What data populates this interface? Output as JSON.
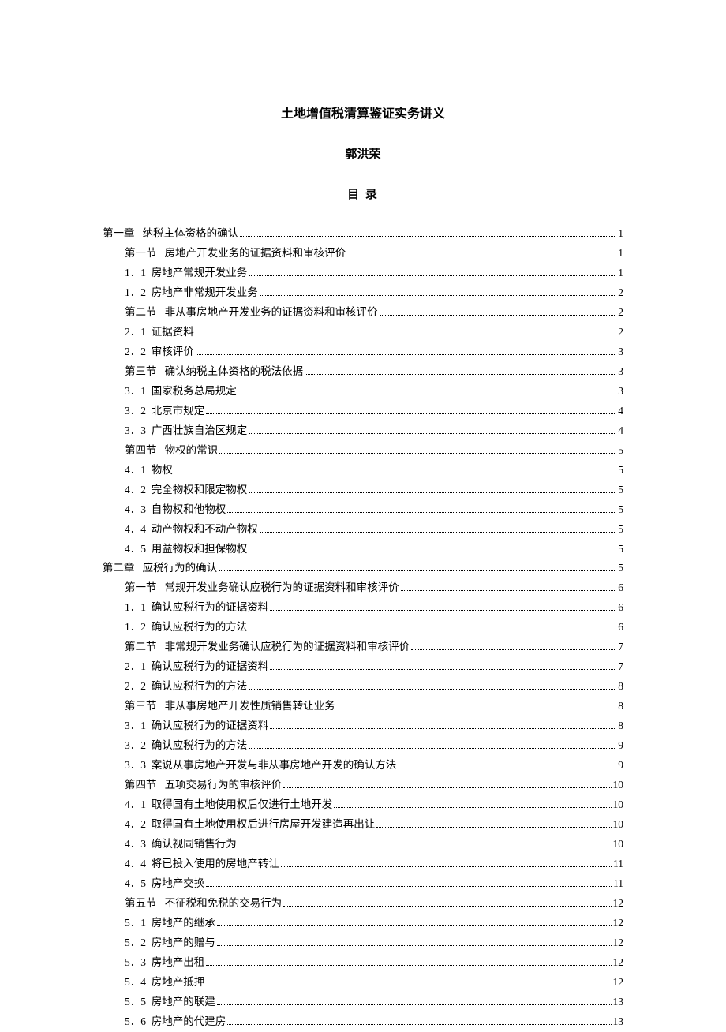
{
  "title": "土地增值税清算鉴证实务讲义",
  "author": "郭洪荣",
  "toc_heading": "目 录",
  "entries": [
    {
      "level": 0,
      "num": "第一章",
      "label": "纳税主体资格的确认",
      "page": "1"
    },
    {
      "level": 1,
      "num": "第一节",
      "label": "房地产开发业务的证据资料和审核评价",
      "page": "1"
    },
    {
      "level": 2,
      "num": "1．1",
      "label": "房地产常规开发业务",
      "page": "1"
    },
    {
      "level": 2,
      "num": "1．2",
      "label": "房地产非常规开发业务",
      "page": "2"
    },
    {
      "level": 1,
      "num": "第二节",
      "label": "非从事房地产开发业务的证据资料和审核评价",
      "page": "2"
    },
    {
      "level": 2,
      "num": "2．1",
      "label": "证据资料",
      "page": "2"
    },
    {
      "level": 2,
      "num": "2．2",
      "label": "审核评价",
      "page": "3"
    },
    {
      "level": 1,
      "num": "第三节",
      "label": "确认纳税主体资格的税法依据",
      "page": "3"
    },
    {
      "level": 2,
      "num": "3．1",
      "label": "国家税务总局规定",
      "page": "3"
    },
    {
      "level": 2,
      "num": "3．2",
      "label": "北京市规定",
      "page": "4"
    },
    {
      "level": 2,
      "num": "3．3",
      "label": "广西壮族自治区规定",
      "page": "4"
    },
    {
      "level": 1,
      "num": "第四节",
      "label": "物权的常识",
      "page": "5"
    },
    {
      "level": 2,
      "num": "4．1",
      "label": "物权",
      "page": "5"
    },
    {
      "level": 2,
      "num": "4．2",
      "label": "完全物权和限定物权",
      "page": "5"
    },
    {
      "level": 2,
      "num": "4．3",
      "label": "自物权和他物权",
      "page": "5"
    },
    {
      "level": 2,
      "num": "4．4",
      "label": "动产物权和不动产物权",
      "page": "5"
    },
    {
      "level": 2,
      "num": "4．5",
      "label": "用益物权和担保物权",
      "page": "5"
    },
    {
      "level": 0,
      "num": "第二章",
      "label": "应税行为的确认",
      "page": "5"
    },
    {
      "level": 1,
      "num": "第一节",
      "label": "常规开发业务确认应税行为的证据资料和审核评价",
      "page": "6"
    },
    {
      "level": 2,
      "num": "1．1",
      "label": "确认应税行为的证据资料",
      "page": "6"
    },
    {
      "level": 2,
      "num": "1．2",
      "label": "确认应税行为的方法",
      "page": "6"
    },
    {
      "level": 1,
      "num": "第二节",
      "label": "非常规开发业务确认应税行为的证据资料和审核评价",
      "page": "7"
    },
    {
      "level": 2,
      "num": "2．1",
      "label": "确认应税行为的证据资料",
      "page": "7"
    },
    {
      "level": 2,
      "num": "2．2",
      "label": "确认应税行为的方法",
      "page": "8"
    },
    {
      "level": 1,
      "num": "第三节",
      "label": "非从事房地产开发性质销售转让业务",
      "page": "8"
    },
    {
      "level": 2,
      "num": "3．1",
      "label": "确认应税行为的证据资料",
      "page": "8"
    },
    {
      "level": 2,
      "num": "3．2",
      "label": "确认应税行为的方法",
      "page": "9"
    },
    {
      "level": 2,
      "num": "3．3",
      "label": "案说从事房地产开发与非从事房地产开发的确认方法",
      "page": "9"
    },
    {
      "level": 1,
      "num": "第四节",
      "label": "五项交易行为的审核评价",
      "page": "10"
    },
    {
      "level": 2,
      "num": "4．1",
      "label": "取得国有土地使用权后仅进行土地开发",
      "page": "10"
    },
    {
      "level": 2,
      "num": "4．2",
      "label": "取得国有土地使用权后进行房屋开发建造再出让",
      "page": "10"
    },
    {
      "level": 2,
      "num": "4．3",
      "label": "确认视同销售行为",
      "page": "10"
    },
    {
      "level": 2,
      "num": "4．4",
      "label": "将已投入使用的房地产转让",
      "page": "11"
    },
    {
      "level": 2,
      "num": "4．5",
      "label": "房地产交换",
      "page": "11"
    },
    {
      "level": 1,
      "num": "第五节",
      "label": "不征税和免税的交易行为",
      "page": "12"
    },
    {
      "level": 2,
      "num": "5．1",
      "label": "房地产的继承",
      "page": "12"
    },
    {
      "level": 2,
      "num": "5．2",
      "label": "房地产的赠与",
      "page": "12"
    },
    {
      "level": 2,
      "num": "5．3",
      "label": "房地产出租",
      "page": "12"
    },
    {
      "level": 2,
      "num": "5．4",
      "label": "房地产抵押",
      "page": "12"
    },
    {
      "level": 2,
      "num": "5．5",
      "label": "房地产的联建",
      "page": "13"
    },
    {
      "level": 2,
      "num": "5．6",
      "label": "房地产的代建房",
      "page": "13"
    }
  ]
}
